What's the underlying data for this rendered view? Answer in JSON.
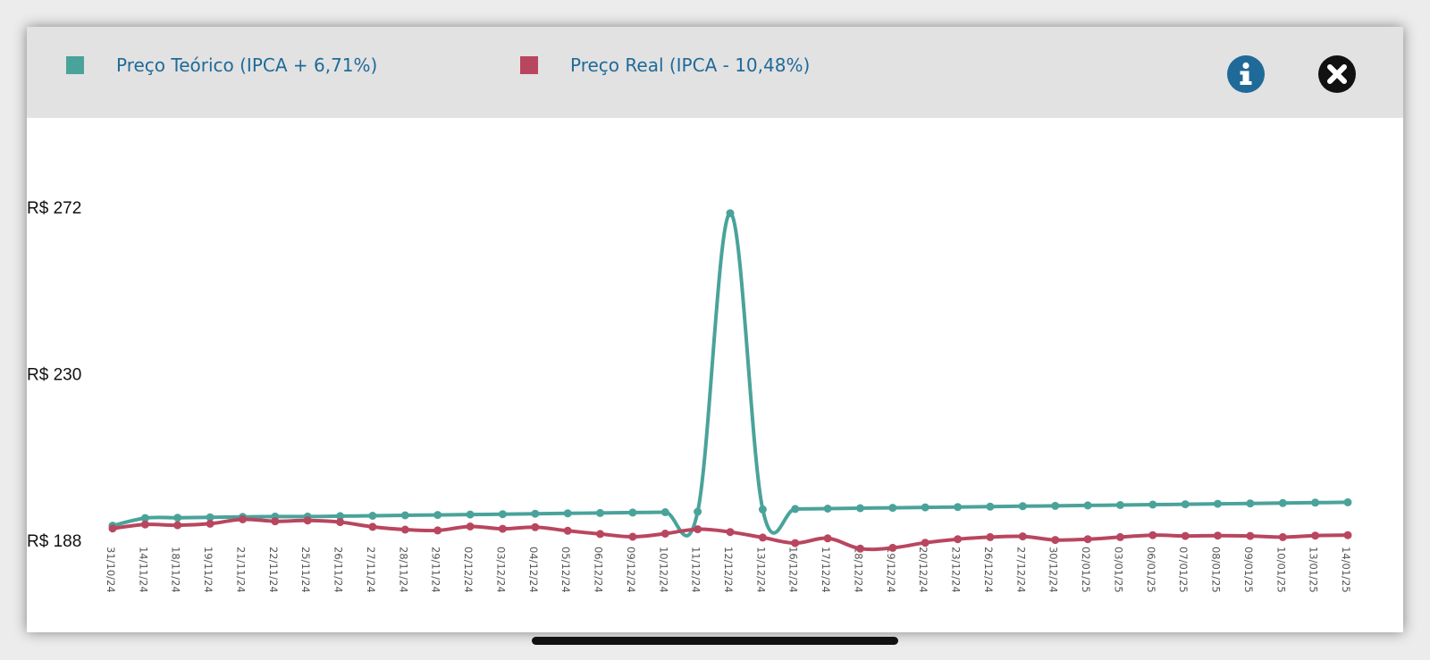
{
  "legend": {
    "theoretical_label": "Preço Teórico (IPCA + 6,71%)",
    "real_label": "Preço Real (IPCA - 10,48%)"
  },
  "icons": {
    "info": "info-icon",
    "close": "close-icon"
  },
  "colors": {
    "theoretical": "#4aa39a",
    "real": "#b9465f",
    "legend_text": "#1f6a98",
    "info_bg": "#1f6a98",
    "close_bg": "#111111",
    "header_bg": "#e2e2e2"
  },
  "chart_data": {
    "type": "line",
    "ylim": [
      188,
      272
    ],
    "yticks": [
      188,
      230,
      272
    ],
    "ytick_labels": [
      "R$ 188",
      "R$ 230",
      "R$ 272"
    ],
    "grid": false,
    "legend_position": "top-left",
    "x": [
      "31/10/24",
      "14/11/24",
      "18/11/24",
      "19/11/24",
      "21/11/24",
      "22/11/24",
      "25/11/24",
      "26/11/24",
      "27/11/24",
      "28/11/24",
      "29/11/24",
      "02/12/24",
      "03/12/24",
      "04/12/24",
      "05/12/24",
      "06/12/24",
      "09/12/24",
      "10/12/24",
      "11/12/24",
      "12/12/24",
      "13/12/24",
      "16/12/24",
      "17/12/24",
      "18/12/24",
      "19/12/24",
      "20/12/24",
      "23/12/24",
      "26/12/24",
      "27/12/24",
      "30/12/24",
      "02/01/25",
      "03/01/25",
      "06/01/25",
      "07/01/25",
      "08/01/25",
      "09/01/25",
      "10/01/25",
      "13/01/25",
      "14/01/25"
    ],
    "series": [
      {
        "name": "Preço Teórico (IPCA + 6,71%)",
        "color": "#4aa39a",
        "values": [
          191.7,
          193.6,
          193.7,
          193.8,
          193.9,
          194.0,
          194.0,
          194.1,
          194.2,
          194.3,
          194.4,
          194.5,
          194.6,
          194.7,
          194.8,
          194.9,
          195.0,
          195.1,
          195.2,
          270.5,
          195.8,
          195.9,
          196.0,
          196.1,
          196.2,
          196.3,
          196.4,
          196.5,
          196.6,
          196.7,
          196.8,
          196.9,
          197.0,
          197.1,
          197.2,
          197.3,
          197.4,
          197.5,
          197.6
        ]
      },
      {
        "name": "Preço Real (IPCA - 10,48%)",
        "color": "#b9465f",
        "values": [
          191.0,
          192.0,
          191.8,
          192.2,
          193.3,
          192.8,
          193.0,
          192.6,
          191.4,
          190.7,
          190.5,
          191.5,
          190.9,
          191.3,
          190.4,
          189.6,
          188.9,
          189.7,
          190.8,
          190.1,
          188.7,
          187.3,
          188.5,
          185.9,
          186.1,
          187.4,
          188.3,
          188.8,
          189.0,
          188.1,
          188.3,
          188.8,
          189.3,
          189.1,
          189.2,
          189.1,
          188.8,
          189.2,
          189.3
        ]
      }
    ]
  }
}
